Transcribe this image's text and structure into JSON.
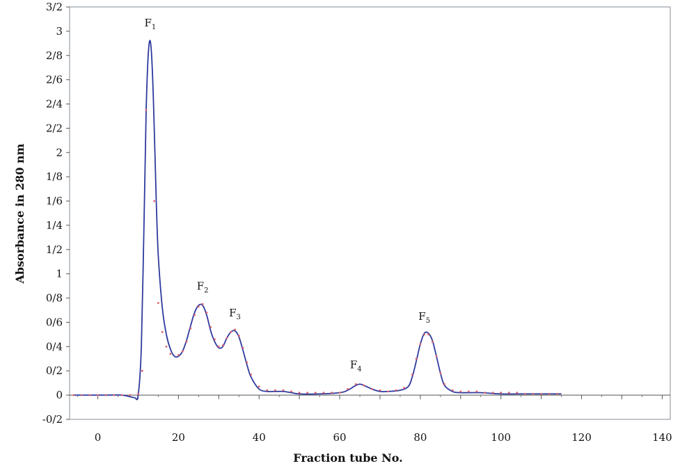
{
  "chart_data": {
    "type": "line",
    "title": "",
    "xlabel": "Fraction tube No.",
    "ylabel": "Absorbance in 280 nm",
    "xlim": [
      -7,
      142
    ],
    "ylim": [
      -0.2,
      3.2
    ],
    "x_ticks": [
      0,
      20,
      40,
      60,
      80,
      100,
      120,
      140
    ],
    "x_tick_labels": [
      "0",
      "20",
      "40",
      "60",
      "80",
      "100",
      "120",
      "140"
    ],
    "y_ticks": [
      -0.2,
      0,
      0.2,
      0.4,
      0.6,
      0.8,
      1,
      1.2,
      1.4,
      1.6,
      1.8,
      2,
      2.2,
      2.4,
      2.6,
      2.8,
      3,
      3.2
    ],
    "y_tick_labels": [
      "-0/2",
      "0",
      "0/2",
      "0/4",
      "0/6",
      "0/8",
      "1",
      "1/2",
      "1/4",
      "1/6",
      "1/8",
      "2",
      "2/2",
      "2/4",
      "2/6",
      "2/8",
      "3",
      "3/2"
    ],
    "grid": false,
    "line_color": "#2e3a9e",
    "marker_color": "#e0606a",
    "series": [
      {
        "style": "line",
        "x": [
          -6,
          -2,
          2,
          6,
          9,
          10,
          10.8,
          11.5,
          12,
          12.5,
          13,
          13.5,
          14,
          14.5,
          15,
          16,
          17,
          18,
          19,
          20,
          21,
          22,
          23,
          24,
          25,
          26,
          27,
          28,
          29,
          30,
          31,
          32,
          33,
          34,
          35,
          36,
          37,
          38,
          40,
          42,
          44,
          46,
          48,
          50,
          55,
          60,
          62,
          64,
          65,
          66,
          68,
          70,
          72,
          75,
          77,
          78,
          79,
          80,
          81,
          82,
          83,
          84,
          85,
          86,
          88,
          90,
          95,
          100,
          105,
          110,
          115
        ],
        "y": [
          0.0,
          0.0,
          0.0,
          0.0,
          -0.02,
          0.0,
          0.4,
          1.5,
          2.35,
          2.8,
          2.92,
          2.7,
          2.2,
          1.6,
          1.15,
          0.72,
          0.5,
          0.38,
          0.32,
          0.32,
          0.36,
          0.45,
          0.57,
          0.68,
          0.74,
          0.74,
          0.66,
          0.53,
          0.44,
          0.39,
          0.4,
          0.47,
          0.52,
          0.53,
          0.48,
          0.37,
          0.25,
          0.15,
          0.05,
          0.03,
          0.03,
          0.03,
          0.02,
          0.01,
          0.01,
          0.02,
          0.04,
          0.08,
          0.09,
          0.08,
          0.05,
          0.03,
          0.03,
          0.04,
          0.07,
          0.15,
          0.28,
          0.42,
          0.51,
          0.51,
          0.45,
          0.32,
          0.18,
          0.08,
          0.03,
          0.02,
          0.02,
          0.01,
          0.01,
          0.01,
          0.01
        ]
      },
      {
        "style": "markers",
        "x": [
          -6,
          -4,
          -2,
          0,
          2,
          4,
          6,
          8,
          10,
          11,
          12,
          14,
          15,
          16,
          17,
          18,
          20,
          21,
          22,
          23,
          24,
          25,
          26,
          27,
          28,
          29,
          30,
          31,
          32,
          33,
          34,
          35,
          36,
          37,
          38,
          40,
          42,
          44,
          46,
          48,
          50,
          52,
          54,
          56,
          58,
          60,
          62,
          64,
          66,
          68,
          70,
          72,
          74,
          76,
          78,
          79,
          80,
          81,
          82,
          83,
          84,
          85,
          86,
          88,
          90,
          92,
          94,
          96,
          98,
          100,
          102,
          104,
          106,
          108,
          110,
          112,
          114
        ],
        "y": [
          0.0,
          0.0,
          0.0,
          0.0,
          0.0,
          0.0,
          0.0,
          0.0,
          0.01,
          0.2,
          2.35,
          1.6,
          0.76,
          0.52,
          0.4,
          0.34,
          0.33,
          0.36,
          0.44,
          0.55,
          0.66,
          0.73,
          0.75,
          0.68,
          0.56,
          0.46,
          0.4,
          0.41,
          0.47,
          0.52,
          0.54,
          0.49,
          0.39,
          0.27,
          0.17,
          0.07,
          0.04,
          0.04,
          0.04,
          0.03,
          0.02,
          0.02,
          0.02,
          0.02,
          0.02,
          0.02,
          0.05,
          0.09,
          0.08,
          0.05,
          0.04,
          0.03,
          0.04,
          0.06,
          0.17,
          0.3,
          0.42,
          0.5,
          0.5,
          0.44,
          0.32,
          0.18,
          0.09,
          0.04,
          0.03,
          0.03,
          0.03,
          0.02,
          0.02,
          0.02,
          0.02,
          0.02,
          0.01,
          0.01,
          0.01,
          0.01,
          0.01
        ]
      }
    ],
    "annotations": [
      {
        "text": "F",
        "sub": "1",
        "x": 13,
        "y": 3.04
      },
      {
        "text": "F",
        "sub": "2",
        "x": 26,
        "y": 0.87
      },
      {
        "text": "F",
        "sub": "3",
        "x": 34,
        "y": 0.65
      },
      {
        "text": "F",
        "sub": "4",
        "x": 64,
        "y": 0.22
      },
      {
        "text": "F",
        "sub": "5",
        "x": 81,
        "y": 0.62
      }
    ]
  }
}
